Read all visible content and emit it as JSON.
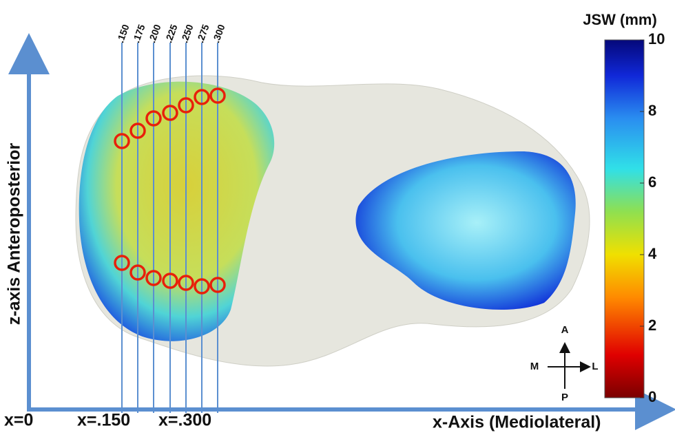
{
  "figure": {
    "colorbar": {
      "title": "JSW (mm)",
      "lim": [
        0,
        10
      ],
      "ticks": [
        0,
        2,
        4,
        6,
        8,
        10
      ]
    },
    "slice_labels": [
      ".150",
      ".175",
      ".200",
      ".225",
      ".250",
      ".275",
      ".300"
    ],
    "z_axis_label": "z-axis Anteroposterior",
    "x_axis_label": "x-Axis (Mediolateral)",
    "x_markers": [
      "x=0",
      "x=.150",
      "x=.300"
    ],
    "compass": {
      "up": "A",
      "down": "P",
      "left": "M",
      "right": "L"
    }
  }
}
